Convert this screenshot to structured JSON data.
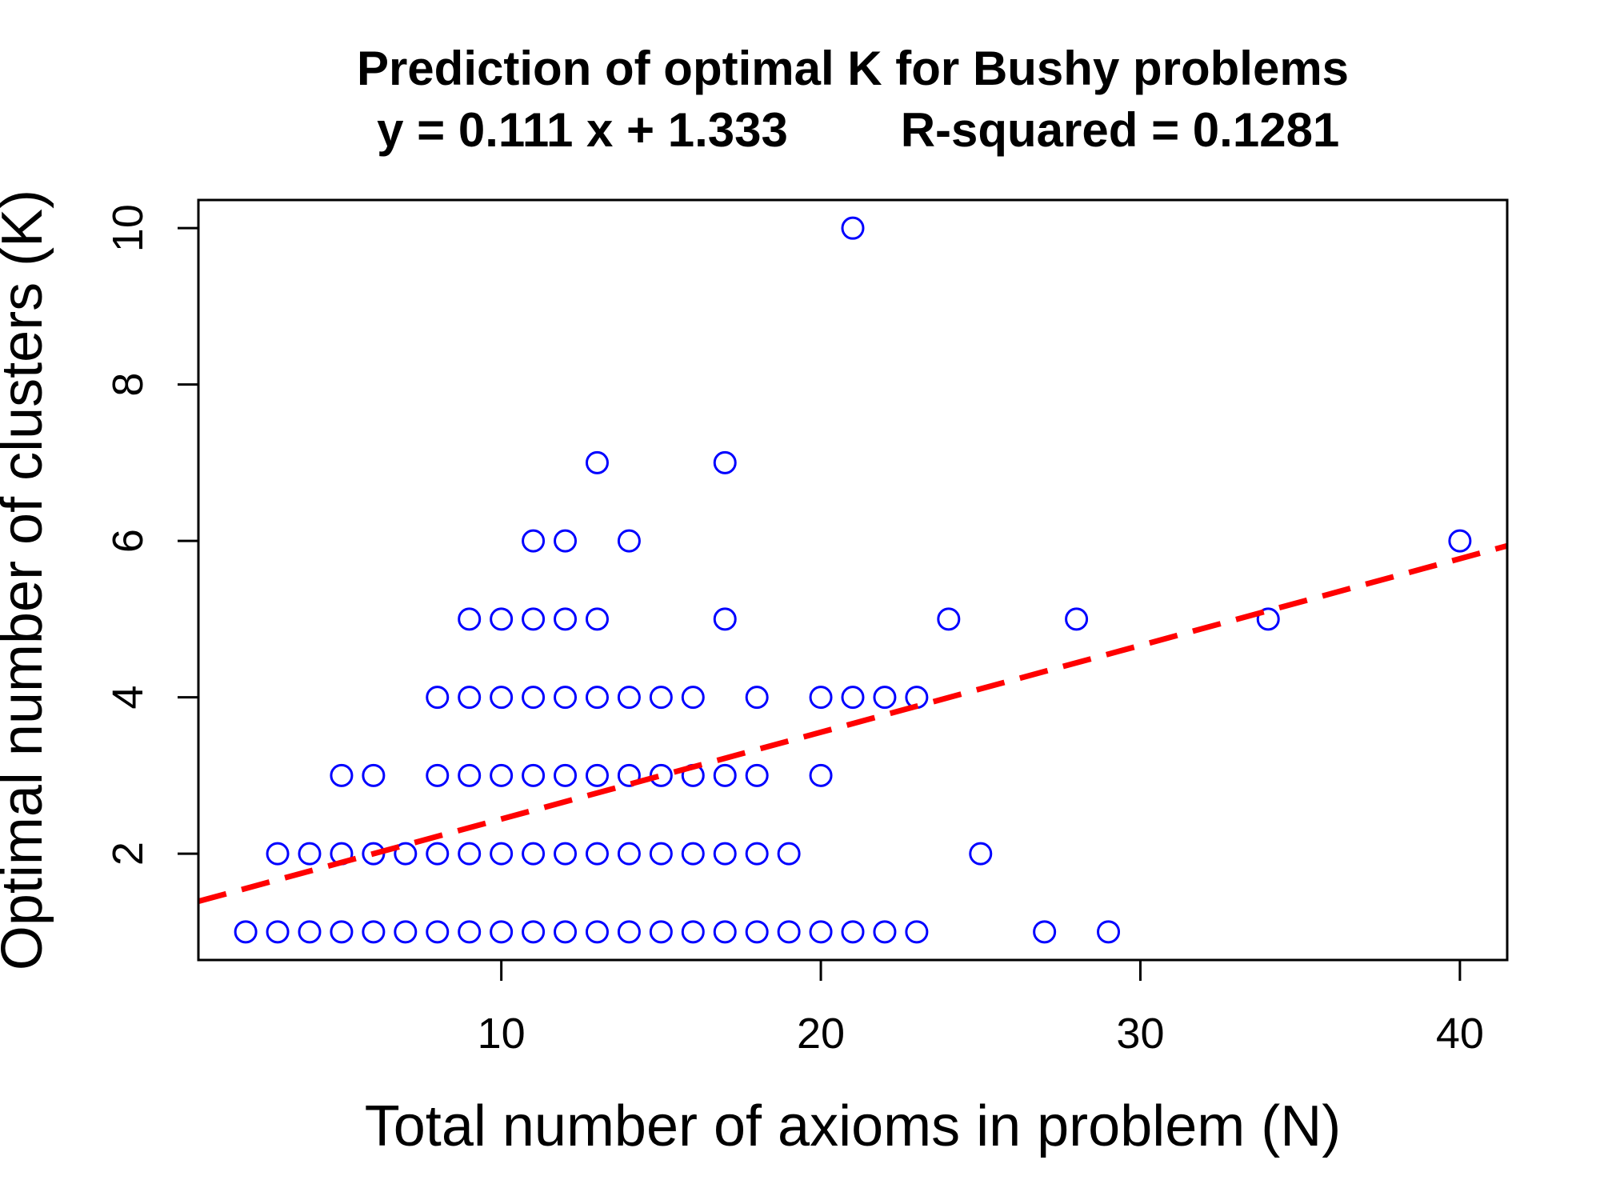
{
  "chart_data": {
    "type": "scatter",
    "title": "Prediction of optimal K for Bushy problems",
    "subtitle_equation": "y = 0.111 x + 1.333",
    "subtitle_r2": "R-squared = 0.1281",
    "xlabel": "Total number of axioms in problem (N)",
    "ylabel": "Optimal number of clusters (K)",
    "xlim": [
      0.52,
      41.48
    ],
    "ylim": [
      0.64,
      10.36
    ],
    "x_ticks": [
      10,
      20,
      30,
      40
    ],
    "y_ticks": [
      2,
      4,
      6,
      8,
      10
    ],
    "grid": false,
    "legend": "none",
    "point_color": "#0000ff",
    "line_color": "#ff0000",
    "regression": {
      "slope": 0.111,
      "intercept": 1.333
    },
    "points": [
      [
        2,
        1
      ],
      [
        3,
        1
      ],
      [
        4,
        1
      ],
      [
        5,
        1
      ],
      [
        6,
        1
      ],
      [
        7,
        1
      ],
      [
        8,
        1
      ],
      [
        9,
        1
      ],
      [
        10,
        1
      ],
      [
        11,
        1
      ],
      [
        12,
        1
      ],
      [
        13,
        1
      ],
      [
        14,
        1
      ],
      [
        15,
        1
      ],
      [
        16,
        1
      ],
      [
        17,
        1
      ],
      [
        18,
        1
      ],
      [
        19,
        1
      ],
      [
        20,
        1
      ],
      [
        21,
        1
      ],
      [
        22,
        1
      ],
      [
        23,
        1
      ],
      [
        27,
        1
      ],
      [
        29,
        1
      ],
      [
        3,
        2
      ],
      [
        4,
        2
      ],
      [
        5,
        2
      ],
      [
        6,
        2
      ],
      [
        7,
        2
      ],
      [
        8,
        2
      ],
      [
        9,
        2
      ],
      [
        10,
        2
      ],
      [
        11,
        2
      ],
      [
        12,
        2
      ],
      [
        13,
        2
      ],
      [
        14,
        2
      ],
      [
        15,
        2
      ],
      [
        16,
        2
      ],
      [
        17,
        2
      ],
      [
        18,
        2
      ],
      [
        19,
        2
      ],
      [
        25,
        2
      ],
      [
        5,
        3
      ],
      [
        6,
        3
      ],
      [
        8,
        3
      ],
      [
        9,
        3
      ],
      [
        10,
        3
      ],
      [
        11,
        3
      ],
      [
        12,
        3
      ],
      [
        13,
        3
      ],
      [
        14,
        3
      ],
      [
        15,
        3
      ],
      [
        16,
        3
      ],
      [
        17,
        3
      ],
      [
        18,
        3
      ],
      [
        20,
        3
      ],
      [
        8,
        4
      ],
      [
        9,
        4
      ],
      [
        10,
        4
      ],
      [
        11,
        4
      ],
      [
        12,
        4
      ],
      [
        13,
        4
      ],
      [
        14,
        4
      ],
      [
        15,
        4
      ],
      [
        16,
        4
      ],
      [
        18,
        4
      ],
      [
        20,
        4
      ],
      [
        21,
        4
      ],
      [
        22,
        4
      ],
      [
        23,
        4
      ],
      [
        9,
        5
      ],
      [
        10,
        5
      ],
      [
        11,
        5
      ],
      [
        12,
        5
      ],
      [
        13,
        5
      ],
      [
        17,
        5
      ],
      [
        24,
        5
      ],
      [
        28,
        5
      ],
      [
        34,
        5
      ],
      [
        11,
        6
      ],
      [
        12,
        6
      ],
      [
        14,
        6
      ],
      [
        40,
        6
      ],
      [
        13,
        7
      ],
      [
        17,
        7
      ],
      [
        21,
        10
      ]
    ]
  }
}
